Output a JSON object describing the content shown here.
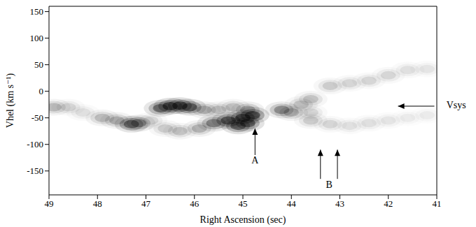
{
  "chart_data": {
    "type": "scatter",
    "x_label": "Right Ascension (sec)",
    "y_label": "Vhel (km s⁻¹)",
    "xlim": [
      49,
      41
    ],
    "xticks": [
      49,
      48,
      47,
      46,
      45,
      44,
      43,
      42,
      41
    ],
    "ylim": [
      -195,
      160
    ],
    "yticks": [
      -150,
      -100,
      -50,
      0,
      50,
      100,
      150
    ],
    "x": [
      48.9,
      48.6,
      48.3,
      47.9,
      47.6,
      47.3,
      47.15,
      46.9,
      46.7,
      46.5,
      46.3,
      46.1,
      45.8,
      45.5,
      45.2,
      45.6,
      45.3,
      45.0,
      44.8,
      45.1,
      44.9,
      45.9,
      46.3,
      46.6,
      44.9,
      44.2,
      44.0,
      43.8,
      43.6,
      43.6,
      43.2,
      42.8,
      42.4,
      42.0,
      41.6,
      41.2,
      43.6,
      43.2,
      42.8,
      42.4,
      42.0,
      41.6,
      41.2
    ],
    "values": [
      -30,
      -30,
      -40,
      -50,
      -55,
      -62,
      -60,
      -55,
      -32,
      -28,
      -27,
      -30,
      -35,
      -35,
      -30,
      -60,
      -55,
      -50,
      -45,
      -65,
      -60,
      -70,
      -75,
      -70,
      -35,
      -35,
      -40,
      -25,
      -40,
      -15,
      10,
      15,
      20,
      30,
      40,
      42,
      -55,
      -62,
      -65,
      -60,
      -55,
      -50,
      -45
    ],
    "intensity": [
      0.35,
      0.2,
      0.15,
      0.35,
      0.4,
      0.85,
      0.6,
      0.2,
      0.8,
      1,
      1,
      0.9,
      0.4,
      0.3,
      0.3,
      0.7,
      1,
      1,
      1,
      0.9,
      0.9,
      0.4,
      0.3,
      0.25,
      0.5,
      0.6,
      0.4,
      0.3,
      0.2,
      0.3,
      0.25,
      0.2,
      0.2,
      0.2,
      0.15,
      0.12,
      0.25,
      0.2,
      0.15,
      0.15,
      0.12,
      0.1,
      0.1
    ],
    "annotations": [
      {
        "text": "A",
        "x": 44.75,
        "y": -132
      },
      {
        "text": "B",
        "x": 43.22,
        "y": -178
      },
      {
        "text": "Vsys",
        "x": 40.6,
        "y": -28
      }
    ],
    "arrows": [
      {
        "from": [
          44.75,
          -120
        ],
        "to": [
          44.75,
          -70
        ]
      },
      {
        "from": [
          43.4,
          -165
        ],
        "to": [
          43.4,
          -110
        ]
      },
      {
        "from": [
          43.05,
          -165
        ],
        "to": [
          43.05,
          -110
        ]
      },
      {
        "from": [
          41.05,
          -28
        ],
        "to": [
          41.8,
          -28
        ]
      }
    ]
  }
}
